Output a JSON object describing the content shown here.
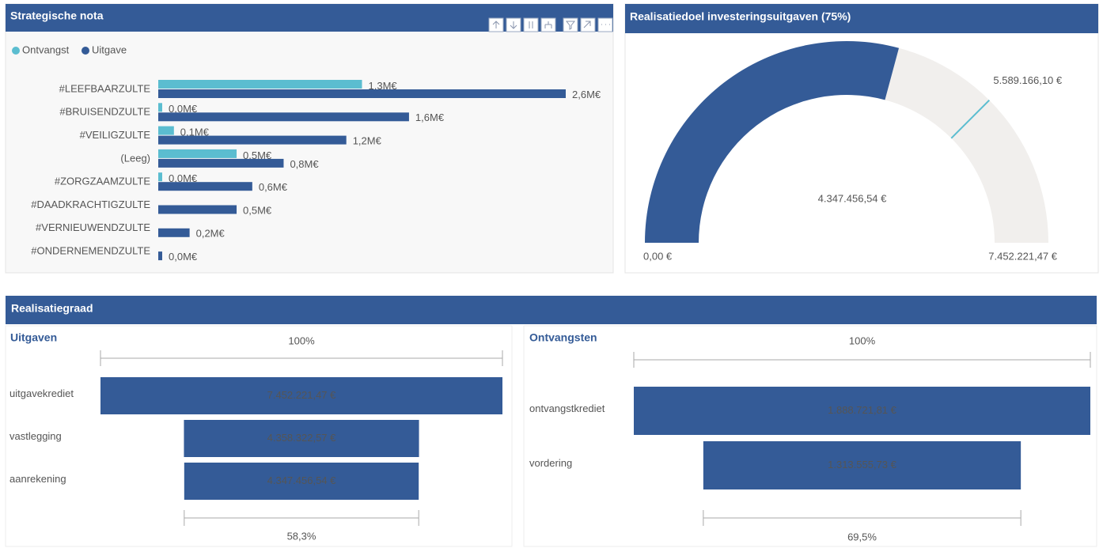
{
  "section_title": "Realisatiegraad",
  "chart_data": [
    {
      "type": "hbar",
      "title": "Strategische nota",
      "categories": [
        "#LEEFBAARZULTE",
        "#BRUISENDZULTE",
        "#VEILIGZULTE",
        "(Leeg)",
        "#ZORGZAAMZULTE",
        "#DAADKRACHTIGZULTE",
        "#VERNIEUWENDZULTE",
        "#ONDERNEMENDZULTE"
      ],
      "series": [
        {
          "name": "Ontvangst",
          "color": "#5bbdd0",
          "values": [
            1.3,
            0.0,
            0.1,
            0.5,
            0.0,
            null,
            null,
            null
          ],
          "value_labels": [
            "1,3M€",
            "0,0M€",
            "0,1M€",
            "0,5M€",
            "0,0M€",
            null,
            null,
            null
          ]
        },
        {
          "name": "Uitgave",
          "color": "#345b97",
          "values": [
            2.6,
            1.6,
            1.2,
            0.8,
            0.6,
            0.5,
            0.2,
            0.0
          ],
          "value_labels": [
            "2,6M€",
            "1,6M€",
            "1,2M€",
            "0,8M€",
            "0,6M€",
            "0,5M€",
            "0,2M€",
            "0,0M€"
          ]
        }
      ]
    },
    {
      "type": "gauge",
      "title": "Realisatiedoel investeringsuitgaven (75%)",
      "value": 4347456.54,
      "value_label": "4.347.456,54 €",
      "color": "#345b97",
      "track_color": "#f1efed",
      "target_color": "#5bbdd0",
      "min": {
        "value": 0,
        "label": "0,00 €"
      },
      "max": {
        "value": 7452221.47,
        "label": "7.452.221,47 €"
      },
      "target": {
        "value": 5589166.1,
        "label": "5.589.166,10 €"
      }
    },
    {
      "type": "funnel",
      "title": "Uitgaven",
      "color": "#345b97",
      "categories": [
        "uitgavekrediet",
        "vastlegging",
        "aanrekening"
      ],
      "values": [
        7452221.47,
        4358322.57,
        4347456.54
      ],
      "value_labels": [
        "7.452.221,47 €",
        "4.358.322,57 €",
        "4.347.456,54 €"
      ],
      "top_label": {
        "value": 100,
        "label": "100%"
      },
      "bottom_label": {
        "value": 58.3,
        "label": "58,3%"
      }
    },
    {
      "type": "funnel",
      "title": "Ontvangsten",
      "color": "#345b97",
      "categories": [
        "ontvangstkrediet",
        "vordering"
      ],
      "values": [
        1888721.81,
        1313555.73
      ],
      "value_labels": [
        "1.888.721,81 €",
        "1.313.555,73 €"
      ],
      "top_label": {
        "value": 100,
        "label": "100%"
      },
      "bottom_label": {
        "value": 69.5,
        "label": "69,5%"
      }
    }
  ]
}
